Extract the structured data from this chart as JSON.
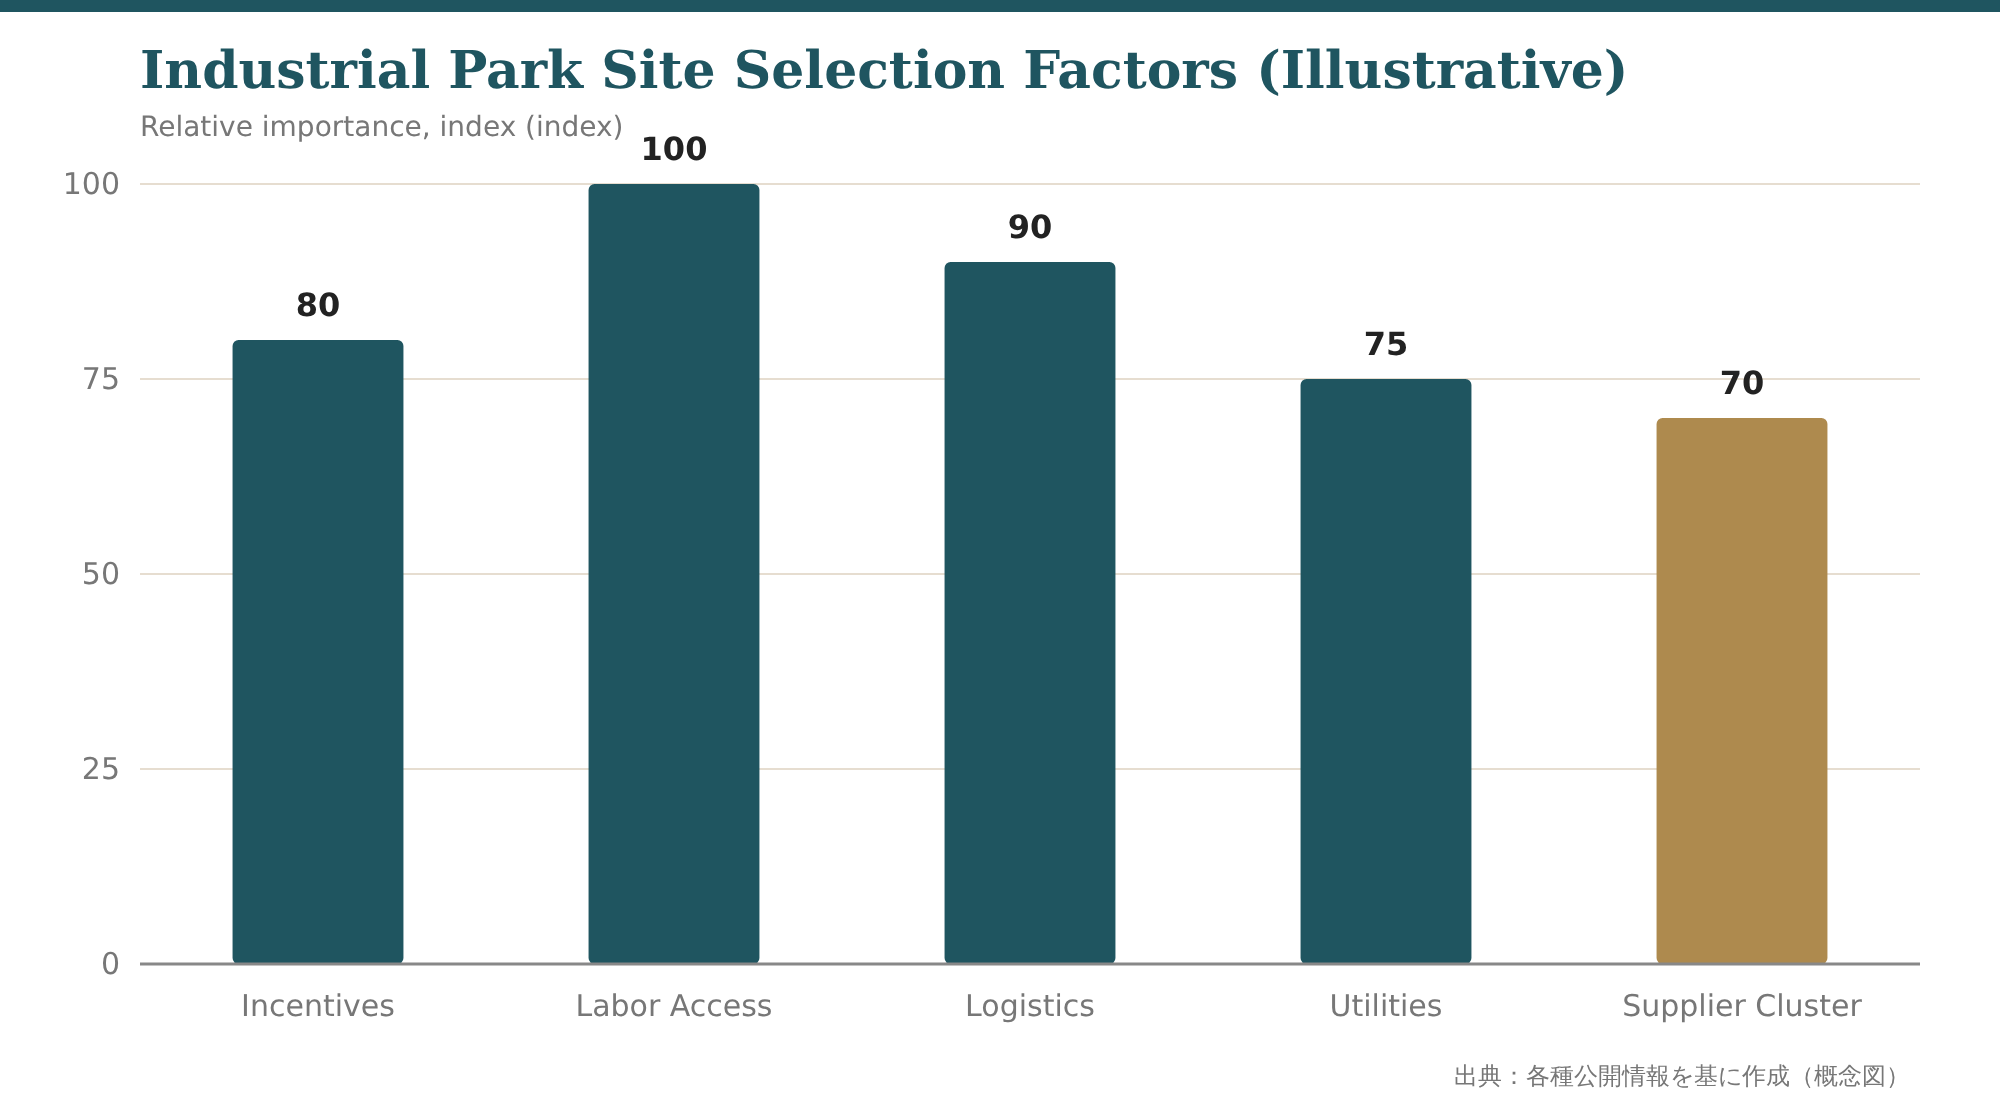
{
  "chart_data": {
    "type": "bar",
    "title": "Industrial Park Site Selection Factors (Illustrative)",
    "ylabel": "Relative importance, index (index)",
    "categories": [
      "Incentives",
      "Labor Access",
      "Logistics",
      "Utilities",
      "Supplier Cluster"
    ],
    "values": [
      80,
      100,
      90,
      75,
      70
    ],
    "colors": [
      "#1f5560",
      "#1f5560",
      "#1f5560",
      "#1f5560",
      "#ae8a4e"
    ],
    "ylim": [
      0,
      100
    ],
    "yticks": [
      0,
      25,
      50,
      75,
      100
    ],
    "grid": "y",
    "data_labels": true,
    "annotations": [
      "出典：各種公開情報を基に作成（概念図）"
    ]
  }
}
